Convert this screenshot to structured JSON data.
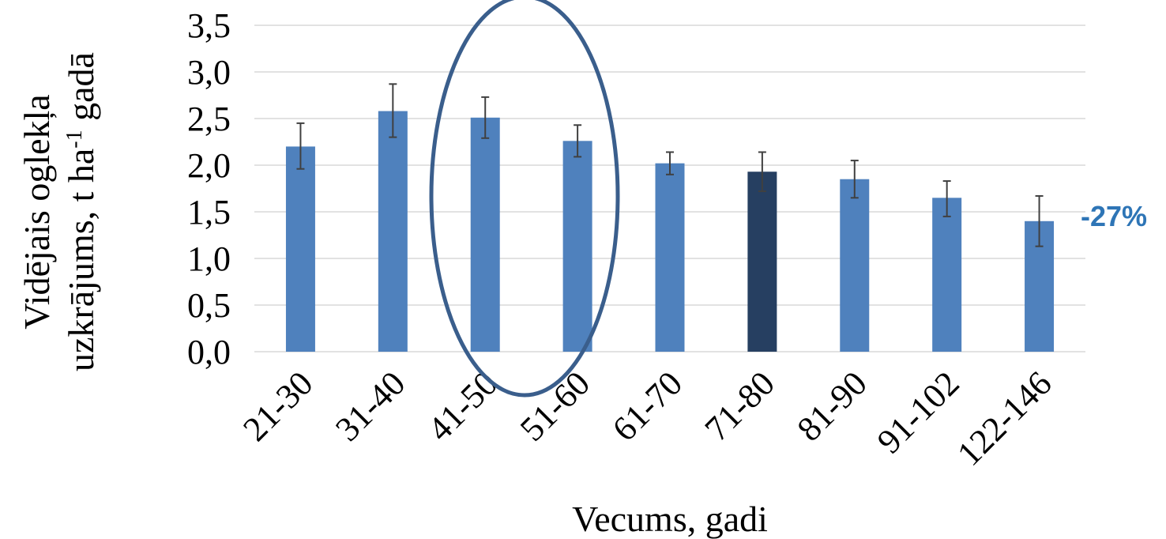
{
  "chart_data": {
    "type": "bar",
    "categories": [
      "21-30",
      "31-40",
      "41-50",
      "51-60",
      "61-70",
      "71-80",
      "81-90",
      "91-102",
      "122-146"
    ],
    "values": [
      2.2,
      2.58,
      2.51,
      2.26,
      2.02,
      1.93,
      1.85,
      1.65,
      1.4
    ],
    "error_low": [
      1.96,
      2.3,
      2.29,
      2.09,
      1.9,
      1.72,
      1.65,
      1.45,
      1.13
    ],
    "error_high": [
      2.45,
      2.87,
      2.73,
      2.43,
      2.14,
      2.14,
      2.05,
      1.83,
      1.67
    ],
    "highlight_index": 5,
    "highlighted_group": [
      "41-50",
      "51-60"
    ],
    "xlabel": "Vecums, gadi",
    "ylabel_line1": "Vidējais oglekļa",
    "ylabel_line2_a": "uzkrājums, t ha",
    "ylabel_sup": "-1",
    "ylabel_line2_b": " gadā",
    "y_ticks": [
      "0,0",
      "0,5",
      "1,0",
      "1,5",
      "2,0",
      "2,5",
      "3,0",
      "3,5"
    ],
    "ylim": [
      0,
      3.5
    ],
    "grid": true,
    "annotation": "-27%",
    "colors": {
      "bar": "#4f81bd",
      "highlight_bar": "#263f61",
      "ellipse": "#3a5e8c",
      "annotation": "#2e75b6",
      "grid": "#d9d9d9",
      "error_bar": "#404040"
    }
  }
}
